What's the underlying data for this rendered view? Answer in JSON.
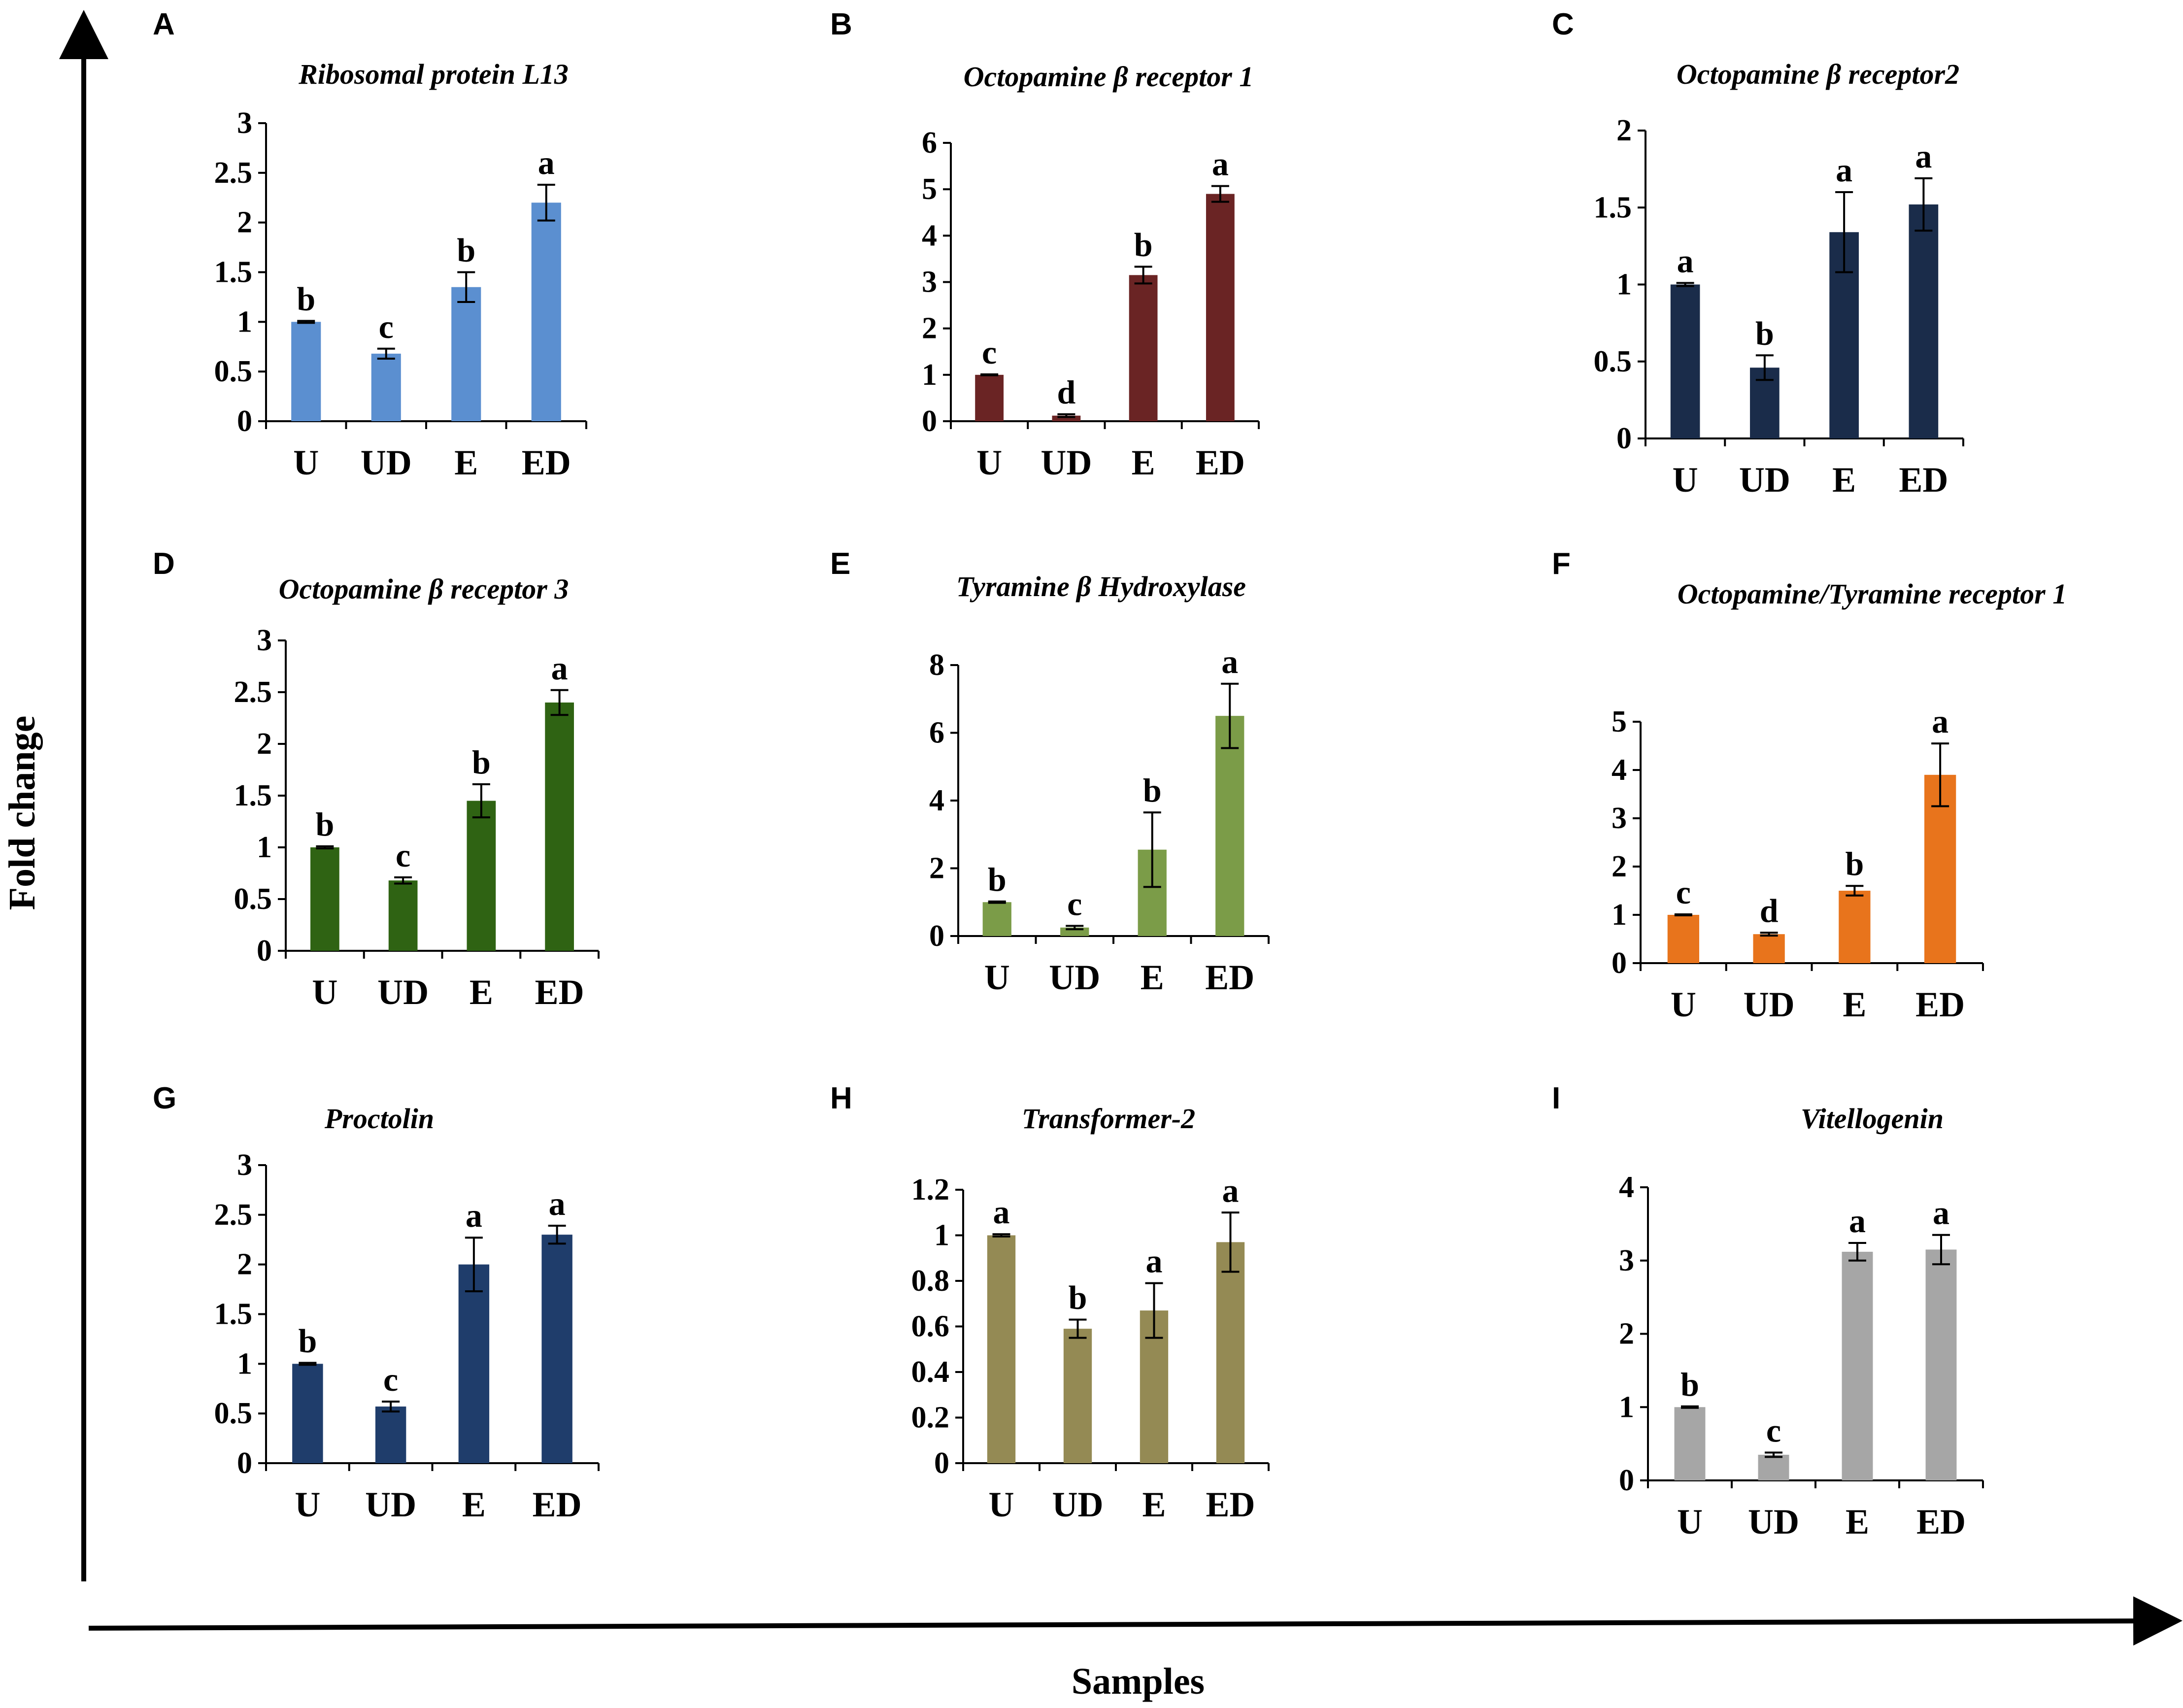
{
  "axes": {
    "y_title": "Fold change",
    "x_title": "Samples"
  },
  "chart_data": [
    {
      "type": "bar",
      "panel": "A",
      "title": "Ribosomal protein L13",
      "categories": [
        "U",
        "UD",
        "E",
        "ED"
      ],
      "values": [
        1.0,
        0.68,
        1.35,
        2.2
      ],
      "errors": [
        0.01,
        0.05,
        0.15,
        0.18
      ],
      "significance": [
        "b",
        "c",
        "b",
        "a"
      ],
      "ylim": [
        0,
        3
      ],
      "yticks": [
        "0",
        "0.5",
        "1",
        "1.5",
        "2",
        "2.5",
        "3"
      ],
      "tick_values": [
        0,
        0.5,
        1,
        1.5,
        2,
        2.5,
        3
      ],
      "color": "#5b8fd0",
      "xlabel": "",
      "ylabel": "Fold change"
    },
    {
      "type": "bar",
      "panel": "B",
      "title": "Octopamine β receptor 1",
      "categories": [
        "U",
        "UD",
        "E",
        "ED"
      ],
      "values": [
        1.0,
        0.12,
        3.15,
        4.9
      ],
      "errors": [
        0.01,
        0.03,
        0.18,
        0.17
      ],
      "significance": [
        "c",
        "d",
        "b",
        "a"
      ],
      "ylim": [
        0,
        6
      ],
      "yticks": [
        "0",
        "1",
        "2",
        "3",
        "4",
        "5",
        "6"
      ],
      "tick_values": [
        0,
        1,
        2,
        3,
        4,
        5,
        6
      ],
      "color": "#6a2424",
      "xlabel": "",
      "ylabel": "Fold change"
    },
    {
      "type": "bar",
      "panel": "C",
      "title": "Octopamine β receptor2",
      "categories": [
        "U",
        "UD",
        "E",
        "ED"
      ],
      "values": [
        1.0,
        0.46,
        1.34,
        1.52
      ],
      "errors": [
        0.01,
        0.08,
        0.26,
        0.17
      ],
      "significance": [
        "a",
        "b",
        "a",
        "a"
      ],
      "ylim": [
        0,
        2
      ],
      "yticks": [
        "0",
        "0.5",
        "1",
        "1.5",
        "2"
      ],
      "tick_values": [
        0,
        0.5,
        1,
        1.5,
        2
      ],
      "color": "#1a2c4a",
      "xlabel": "",
      "ylabel": "Fold change"
    },
    {
      "type": "bar",
      "panel": "D",
      "title": "Octopamine β receptor 3",
      "categories": [
        "U",
        "UD",
        "E",
        "ED"
      ],
      "values": [
        1.0,
        0.68,
        1.45,
        2.4
      ],
      "errors": [
        0.01,
        0.03,
        0.16,
        0.12
      ],
      "significance": [
        "b",
        "c",
        "b",
        "a"
      ],
      "ylim": [
        0,
        3
      ],
      "yticks": [
        "0",
        "0.5",
        "1",
        "1.5",
        "2",
        "2.5",
        "3"
      ],
      "tick_values": [
        0,
        0.5,
        1,
        1.5,
        2,
        2.5,
        3
      ],
      "color": "#2f6313",
      "xlabel": "",
      "ylabel": "Fold change"
    },
    {
      "type": "bar",
      "panel": "E",
      "title": "Tyramine β Hydroxylase",
      "categories": [
        "U",
        "UD",
        "E",
        "ED"
      ],
      "values": [
        1.0,
        0.25,
        2.55,
        6.5
      ],
      "errors": [
        0.02,
        0.05,
        1.1,
        0.95
      ],
      "significance": [
        "b",
        "c",
        "b",
        "a"
      ],
      "ylim": [
        0,
        8
      ],
      "yticks": [
        "0",
        "2",
        "4",
        "6",
        "8"
      ],
      "tick_values": [
        0,
        2,
        4,
        6,
        8
      ],
      "color": "#7b9c48",
      "xlabel": "",
      "ylabel": "Fold change"
    },
    {
      "type": "bar",
      "panel": "F",
      "title": "Octopamine/Tyramine receptor 1",
      "categories": [
        "U",
        "UD",
        "E",
        "ED"
      ],
      "values": [
        1.0,
        0.6,
        1.5,
        3.9
      ],
      "errors": [
        0.01,
        0.03,
        0.1,
        0.65
      ],
      "significance": [
        "c",
        "d",
        "b",
        "a"
      ],
      "ylim": [
        0,
        5
      ],
      "yticks": [
        "0",
        "1",
        "2",
        "3",
        "4",
        "5"
      ],
      "tick_values": [
        0,
        1,
        2,
        3,
        4,
        5
      ],
      "color": "#e8741c",
      "xlabel": "",
      "ylabel": "Fold change"
    },
    {
      "type": "bar",
      "panel": "G",
      "title": "Proctolin",
      "categories": [
        "U",
        "UD",
        "E",
        "ED"
      ],
      "values": [
        1.0,
        0.57,
        2.0,
        2.3
      ],
      "errors": [
        0.01,
        0.05,
        0.27,
        0.09
      ],
      "significance": [
        "b",
        "c",
        "a",
        "a"
      ],
      "ylim": [
        0,
        3
      ],
      "yticks": [
        "0",
        "0.5",
        "1",
        "1.5",
        "2",
        "2.5",
        "3"
      ],
      "tick_values": [
        0,
        0.5,
        1,
        1.5,
        2,
        2.5,
        3
      ],
      "color": "#1f3d6b",
      "xlabel": "",
      "ylabel": "Fold change"
    },
    {
      "type": "bar",
      "panel": "H",
      "title": "Transformer-2",
      "categories": [
        "U",
        "UD",
        "E",
        "ED"
      ],
      "values": [
        1.0,
        0.59,
        0.67,
        0.97
      ],
      "errors": [
        0.005,
        0.04,
        0.12,
        0.13
      ],
      "significance": [
        "a",
        "b",
        "a",
        "a"
      ],
      "ylim": [
        0,
        1.2
      ],
      "yticks": [
        "0",
        "0.2",
        "0.4",
        "0.6",
        "0.8",
        "1",
        "1.2"
      ],
      "tick_values": [
        0,
        0.2,
        0.4,
        0.6,
        0.8,
        1,
        1.2
      ],
      "color": "#948a54",
      "xlabel": "",
      "ylabel": "Fold change"
    },
    {
      "type": "bar",
      "panel": "I",
      "title": "Vitellogenin",
      "categories": [
        "U",
        "UD",
        "E",
        "ED"
      ],
      "values": [
        1.0,
        0.35,
        3.12,
        3.15
      ],
      "errors": [
        0.01,
        0.03,
        0.12,
        0.2
      ],
      "significance": [
        "b",
        "c",
        "a",
        "a"
      ],
      "ylim": [
        0,
        4
      ],
      "yticks": [
        "0",
        "1",
        "2",
        "3",
        "4"
      ],
      "tick_values": [
        0,
        1,
        2,
        3,
        4
      ],
      "color": "#a6a6a6",
      "xlabel": "",
      "ylabel": "Fold change"
    }
  ]
}
